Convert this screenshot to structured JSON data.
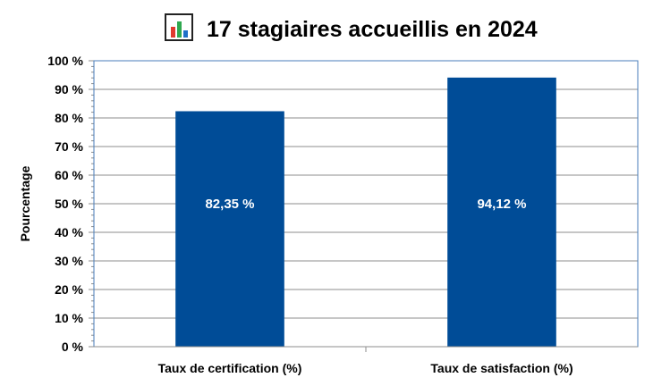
{
  "chart_data": {
    "type": "bar",
    "title": "17 stagiaires accueillis en 2024",
    "title_icon": "bar-chart-icon",
    "ylabel": "Pourcentage",
    "xlabel": "",
    "ylim": [
      0,
      100
    ],
    "yticks": [
      0,
      10,
      20,
      30,
      40,
      50,
      60,
      70,
      80,
      90,
      100
    ],
    "ytick_labels": [
      "0 %",
      "10 %",
      "20 %",
      "30 %",
      "40 %",
      "50 %",
      "60 %",
      "70 %",
      "80 %",
      "90 %",
      "100 %"
    ],
    "categories": [
      "Taux de certification (%)",
      "Taux de satisfaction (%)"
    ],
    "values": [
      82.35,
      94.12
    ],
    "data_labels": [
      "82,35 %",
      "94,12 %"
    ],
    "grid": true,
    "legend": "none",
    "colors": {
      "bar": "#004C97",
      "gridline": "#8C8C8C",
      "plot_border": "#4A7EBB",
      "icon_bars": [
        "#E03A2F",
        "#2FA84F",
        "#1F6FC8"
      ]
    }
  }
}
